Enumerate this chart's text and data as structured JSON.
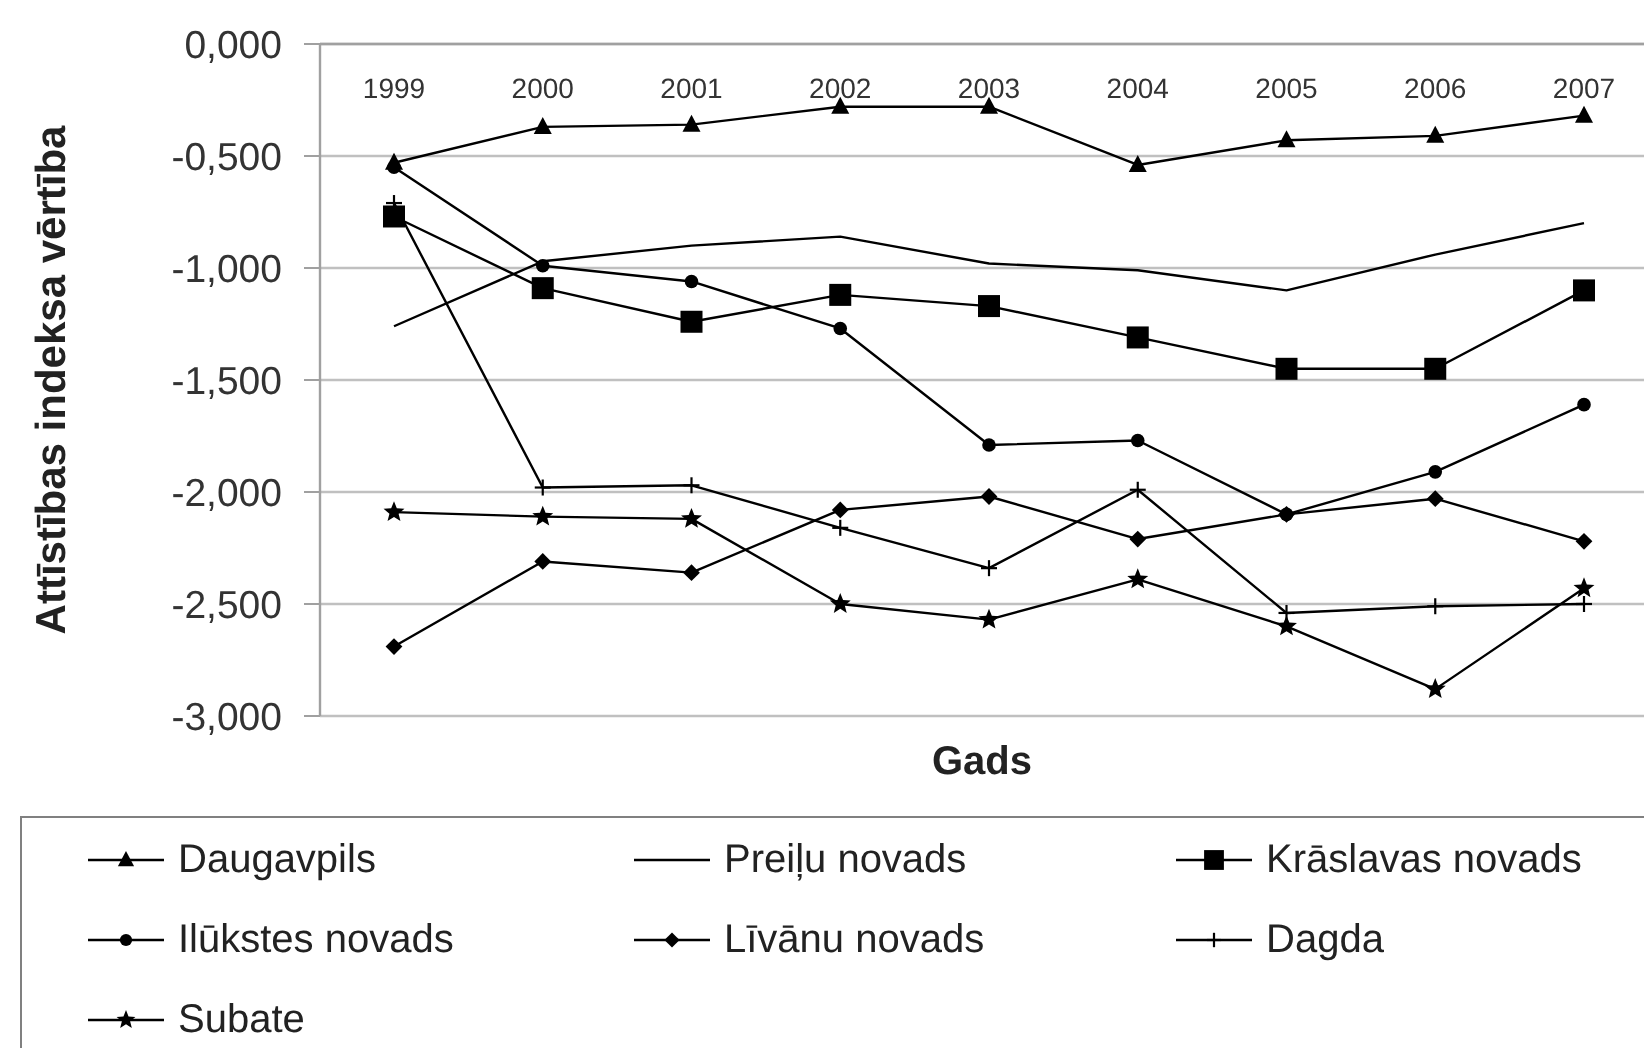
{
  "chart_data": {
    "type": "line",
    "xlabel": "Gads",
    "ylabel": "Attīstības indeksa vērtība",
    "categories": [
      "1999",
      "2000",
      "2001",
      "2002",
      "2003",
      "2004",
      "2005",
      "2006",
      "2007"
    ],
    "ylim": [
      -3,
      0
    ],
    "yticks": [
      {
        "value": 0,
        "label": "0,000"
      },
      {
        "value": -0.5,
        "label": "-0,500"
      },
      {
        "value": -1,
        "label": "-1,000"
      },
      {
        "value": -1.5,
        "label": "-1,500"
      },
      {
        "value": -2,
        "label": "-2,000"
      },
      {
        "value": -2.5,
        "label": "-2,500"
      },
      {
        "value": -3,
        "label": "-3,000"
      }
    ],
    "grid": "y",
    "legend": "bottom",
    "series": [
      {
        "name": "Daugavpils",
        "color": "#000000",
        "marker": "triangle",
        "values": [
          -0.53,
          -0.37,
          -0.36,
          -0.28,
          -0.28,
          -0.54,
          -0.43,
          -0.41,
          -0.32
        ]
      },
      {
        "name": "Preiļu novads",
        "color": "#000000",
        "marker": "none",
        "values": [
          -1.26,
          -0.97,
          -0.9,
          -0.86,
          -0.98,
          -1.01,
          -1.1,
          -0.94,
          -0.8
        ]
      },
      {
        "name": "Krāslavas novads",
        "color": "#000000",
        "marker": "square",
        "values": [
          -0.77,
          -1.09,
          -1.24,
          -1.12,
          -1.17,
          -1.31,
          -1.45,
          -1.45,
          -1.1
        ]
      },
      {
        "name": "Ilūkstes novads",
        "color": "#000000",
        "marker": "circle",
        "values": [
          -0.55,
          -0.99,
          -1.06,
          -1.27,
          -1.79,
          -1.77,
          -2.1,
          -1.91,
          -1.61
        ]
      },
      {
        "name": "Līvānu novads",
        "color": "#000000",
        "marker": "diamond",
        "values": [
          -2.69,
          -2.31,
          -2.36,
          -2.08,
          -2.02,
          -2.21,
          -2.1,
          -2.03,
          -2.22
        ]
      },
      {
        "name": "Dagda",
        "color": "#000000",
        "marker": "cross",
        "values": [
          -0.71,
          -1.98,
          -1.97,
          -2.16,
          -2.34,
          -1.99,
          -2.54,
          -2.51,
          -2.5
        ]
      },
      {
        "name": "Subate",
        "color": "#000000",
        "marker": "star",
        "values": [
          -2.09,
          -2.11,
          -2.12,
          -2.5,
          -2.57,
          -2.39,
          -2.6,
          -2.88,
          -2.43
        ]
      }
    ]
  }
}
